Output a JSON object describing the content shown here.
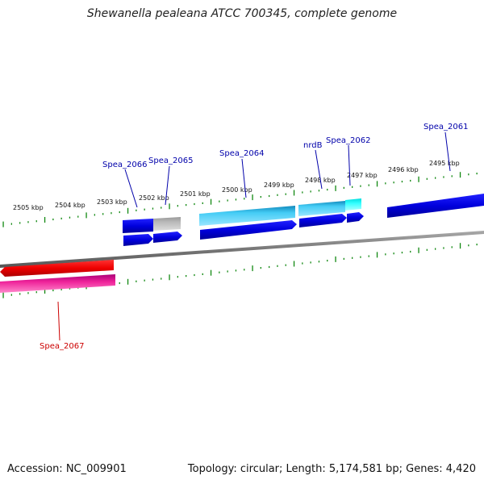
{
  "title": "Shewanella pealeana ATCC 700345, complete genome",
  "footer": {
    "accession": "Accession: NC_009901",
    "summary": "Topology: circular; Length: 5,174,581 bp; Genes: 4,420"
  },
  "scale_labels": [
    "2505 kbp",
    "2504 kbp",
    "2503 kbp",
    "2502 kbp",
    "2501 kbp",
    "2500 kbp",
    "2499 kbp",
    "2498 kbp",
    "2497 kbp",
    "2496 kbp",
    "2495 kbp"
  ],
  "genes": [
    {
      "label": "Spea_2061",
      "color": "#0000aa"
    },
    {
      "label": "Spea_2062",
      "color": "#0000aa"
    },
    {
      "label": "nrdB",
      "color": "#0000aa"
    },
    {
      "label": "Spea_2064",
      "color": "#0000aa"
    },
    {
      "label": "Spea_2065",
      "color": "#0000aa"
    },
    {
      "label": "Spea_2066",
      "color": "#0000aa"
    },
    {
      "label": "Spea_2067",
      "color": "#cc0000"
    }
  ],
  "colors": {
    "backbone": "#777777",
    "tick": "#118811",
    "cds_forward": "#0000dd",
    "cds_reverse": "#ee0000",
    "feature_cyan": "#33bbee",
    "feature_aqua": "#22ffff",
    "feature_grey": "#aaaaaa",
    "feature_magenta": "#dd2299"
  }
}
